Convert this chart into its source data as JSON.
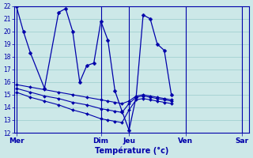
{
  "xlabel": "Température (°c)",
  "background_color": "#cce8e8",
  "line_color": "#0000aa",
  "grid_color": "#99cccc",
  "ylim": [
    12,
    22
  ],
  "yticks": [
    12,
    13,
    14,
    15,
    16,
    17,
    18,
    19,
    20,
    21,
    22
  ],
  "day_labels": [
    "Mer",
    "Dim",
    "Jeu",
    "Ven",
    "Sar"
  ],
  "day_tick_x": [
    0,
    12,
    16,
    24,
    32
  ],
  "vline_x": [
    0,
    12,
    16,
    24,
    32
  ],
  "xlim": [
    -0.3,
    33
  ],
  "main_x": [
    0,
    1,
    2,
    4,
    6,
    7,
    8,
    9,
    10,
    11,
    12,
    13,
    14,
    15,
    16,
    17,
    18,
    19,
    20,
    21,
    22
  ],
  "main_y": [
    22,
    20,
    18.3,
    15.5,
    21.5,
    21.8,
    20.0,
    16.0,
    17.3,
    17.5,
    20.8,
    19.3,
    15.3,
    13.7,
    12.2,
    14.8,
    21.3,
    21.0,
    19.0,
    18.5,
    15.0
  ],
  "flat1_x": [
    0,
    2,
    4,
    6,
    8,
    10,
    12,
    13,
    14,
    15,
    16,
    17,
    18,
    19,
    20,
    21,
    22
  ],
  "flat1_y": [
    15.8,
    15.6,
    15.4,
    15.2,
    15.0,
    14.8,
    14.6,
    14.5,
    14.4,
    14.3,
    14.5,
    14.9,
    15.0,
    14.9,
    14.8,
    14.7,
    14.6
  ],
  "flat2_x": [
    0,
    2,
    4,
    6,
    8,
    10,
    12,
    13,
    14,
    15,
    16,
    17,
    18,
    19,
    20,
    21,
    22
  ],
  "flat2_y": [
    15.5,
    15.2,
    14.9,
    14.7,
    14.4,
    14.2,
    13.9,
    13.8,
    13.7,
    13.6,
    14.3,
    14.8,
    14.9,
    14.8,
    14.7,
    14.6,
    14.5
  ],
  "flat3_x": [
    0,
    2,
    4,
    6,
    8,
    10,
    12,
    13,
    14,
    15,
    16,
    17,
    18,
    19,
    20,
    21,
    22
  ],
  "flat3_y": [
    15.2,
    14.8,
    14.5,
    14.2,
    13.8,
    13.5,
    13.1,
    13.0,
    12.9,
    12.8,
    13.8,
    14.6,
    14.7,
    14.6,
    14.5,
    14.4,
    14.3
  ]
}
